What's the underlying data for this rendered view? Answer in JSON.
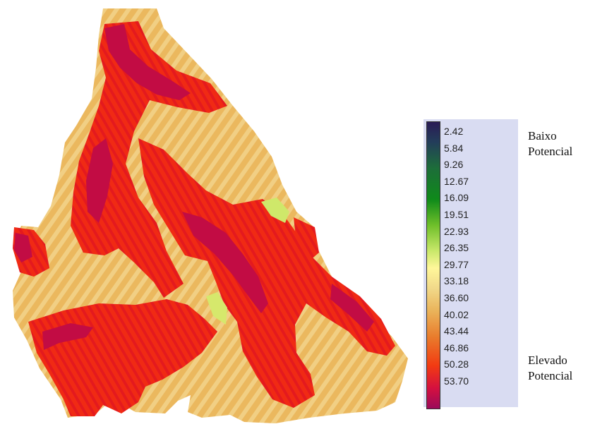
{
  "legend": {
    "values": [
      "2.42",
      "5.84",
      "9.26",
      "12.67",
      "16.09",
      "19.51",
      "22.93",
      "26.35",
      "29.77",
      "33.18",
      "36.60",
      "40.02",
      "43.44",
      "46.86",
      "50.28",
      "53.70"
    ],
    "low_label_line1": "Baixo",
    "low_label_line2": "Potencial",
    "high_label_line1": "Elevado",
    "high_label_line2": "Potencial"
  },
  "colors": {
    "low": "#2a1b55",
    "mid_green": "#0f8a1a",
    "mid_yellow": "#fff79a",
    "mid_orange": "#eab35a",
    "high_red": "#f23b12",
    "high_crimson": "#9b0a5a",
    "legend_bg": "#d9dcf2"
  }
}
